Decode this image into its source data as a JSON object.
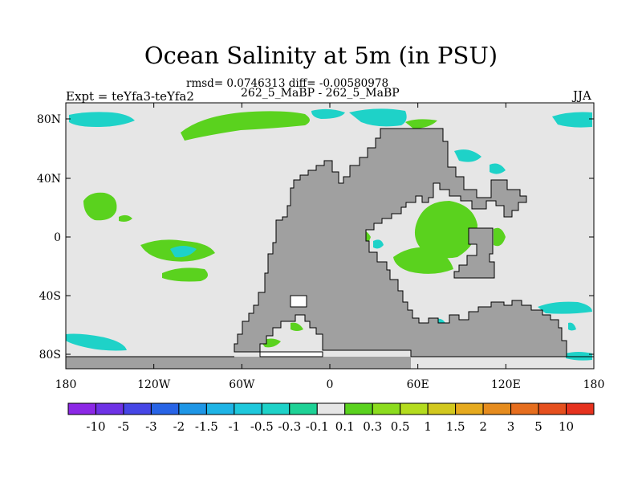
{
  "title": "Ocean Salinity at 5m (in PSU)",
  "stats": "rmsd= 0.0746313 diff= -0.00580978",
  "subtitle": "262_5_MaBP - 262_5_MaBP",
  "left_label": "Expt = teYfa3-teYfa2",
  "right_label": "JJA",
  "y_ticks": [
    "80N",
    "40N",
    "0",
    "40S",
    "80S"
  ],
  "x_ticks": [
    "180",
    "120W",
    "60W",
    "0",
    "60E",
    "120E",
    "180"
  ],
  "colors": {
    "land": "#a0a0a0",
    "ocean_neutral": "#e6e6e6",
    "pos_0_1": "#5ad21e",
    "pos_0_3": "#8cdc1e",
    "neg_0_1": "#1ed296",
    "neg_0_3": "#1ed2c8"
  },
  "colorbar": {
    "labels": [
      "-10",
      "-5",
      "-3",
      "-2",
      "-1.5",
      "-1",
      "-0.5",
      "-0.3",
      "-0.1",
      "0.1",
      "0.3",
      "0.5",
      "1",
      "1.5",
      "2",
      "3",
      "5",
      "10"
    ],
    "colors": [
      "#8c28e6",
      "#6e32e6",
      "#4646e6",
      "#2864e6",
      "#1e96e6",
      "#1eb4e6",
      "#1ec8dc",
      "#1ed2c8",
      "#1ed296",
      "#e6e6e6",
      "#5ad21e",
      "#8cdc1e",
      "#b4dc1e",
      "#d2c81e",
      "#e6aa1e",
      "#e68c1e",
      "#e66e1e",
      "#e6501e",
      "#e6321e"
    ]
  }
}
